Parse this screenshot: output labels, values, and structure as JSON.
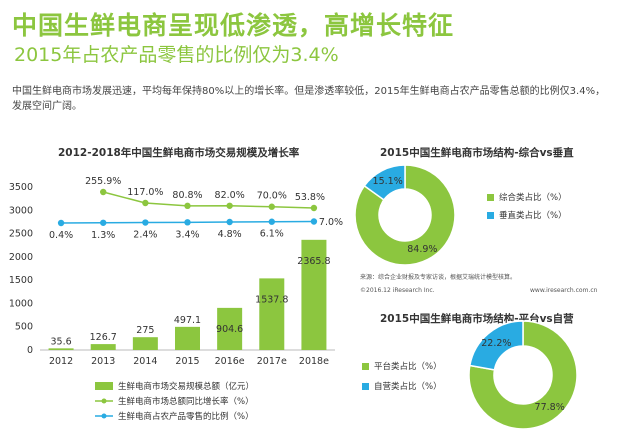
{
  "header": {
    "title": "中国生鲜电商呈现低渗透，高增长特征",
    "subtitle": "2015年占农产品零售的比例仅为3.4%",
    "intro": "中国生鲜电商市场发展迅速，平均每年保持80%以上的增长率。但是渗透率较低，2015年生鲜电商占农产品零售总额的比例仅3.4%，发展空间广阔。"
  },
  "main_chart": {
    "title": "2012-2018年中国生鲜电商市场交易规模及增长率",
    "legend": [
      "生鲜电商市场交易规模总额（亿元）",
      "生鲜电商市场总额同比增长率（%）",
      "生鲜电商占农产品零售的比例（%）"
    ]
  },
  "pie1": {
    "title": "2015中国生鲜电商市场结构-综合vs垂直",
    "legend": [
      "综合类占比（%）",
      "垂直类占比（%）"
    ]
  },
  "pie2": {
    "title": "2015中国生鲜电商市场结构-平台vs自营",
    "legend": [
      "平台类占比（%）",
      "自营类占比（%）"
    ]
  },
  "source": {
    "line1": "来源：综合企业财报及专家访谈，根据艾瑞统计模型核算。",
    "copyright": "©2016.12 iResearch Inc.",
    "url": "www.iresearch.com.cn"
  },
  "colors": {
    "green": "#8cc63f",
    "blue": "#29abe2",
    "line_green": "#8cc63f",
    "line_blue": "#29abe2"
  },
  "chart_data": [
    {
      "type": "bar",
      "title": "2012-2018年中国生鲜电商市场交易规模及增长率",
      "categories": [
        "2012",
        "2013",
        "2014",
        "2015",
        "2016e",
        "2017e",
        "2018e"
      ],
      "ylim": [
        0,
        3500
      ],
      "yticks": [
        0,
        500,
        1000,
        1500,
        2000,
        2500,
        3000,
        3500
      ],
      "series": [
        {
          "name": "生鲜电商市场交易规模总额（亿元）",
          "type": "bar",
          "values": [
            35.6,
            126.7,
            275,
            497.1,
            904.6,
            1537.8,
            2365.8
          ],
          "labels": [
            "35.6",
            "126.7",
            "275",
            "497.1",
            "904.6",
            "1537.8",
            "2365.8"
          ]
        },
        {
          "name": "生鲜电商市场总额同比增长率（%）",
          "type": "line",
          "values": [
            null,
            255.9,
            117.0,
            80.8,
            82.0,
            70.0,
            53.8
          ],
          "labels": [
            "",
            "255.9%",
            "117.0%",
            "80.8%",
            "82.0%",
            "70.0%",
            "53.8%"
          ]
        },
        {
          "name": "生鲜电商占农产品零售的比例（%）",
          "type": "line",
          "values": [
            0.4,
            1.3,
            2.4,
            3.4,
            4.8,
            6.1,
            7.0
          ],
          "labels": [
            "0.4%",
            "1.3%",
            "2.4%",
            "3.4%",
            "4.8%",
            "6.1%",
            "7.0%"
          ]
        }
      ]
    },
    {
      "type": "pie",
      "title": "2015中国生鲜电商市场结构-综合vs垂直",
      "categories": [
        "综合类占比（%）",
        "垂直类占比（%）"
      ],
      "values": [
        84.9,
        15.1
      ],
      "labels": [
        "84.9%",
        "15.1%"
      ]
    },
    {
      "type": "pie",
      "title": "2015中国生鲜电商市场结构-平台vs自营",
      "categories": [
        "平台类占比（%）",
        "自营类占比（%）"
      ],
      "values": [
        77.8,
        22.2
      ],
      "labels": [
        "77.8%",
        "22.2%"
      ]
    }
  ]
}
